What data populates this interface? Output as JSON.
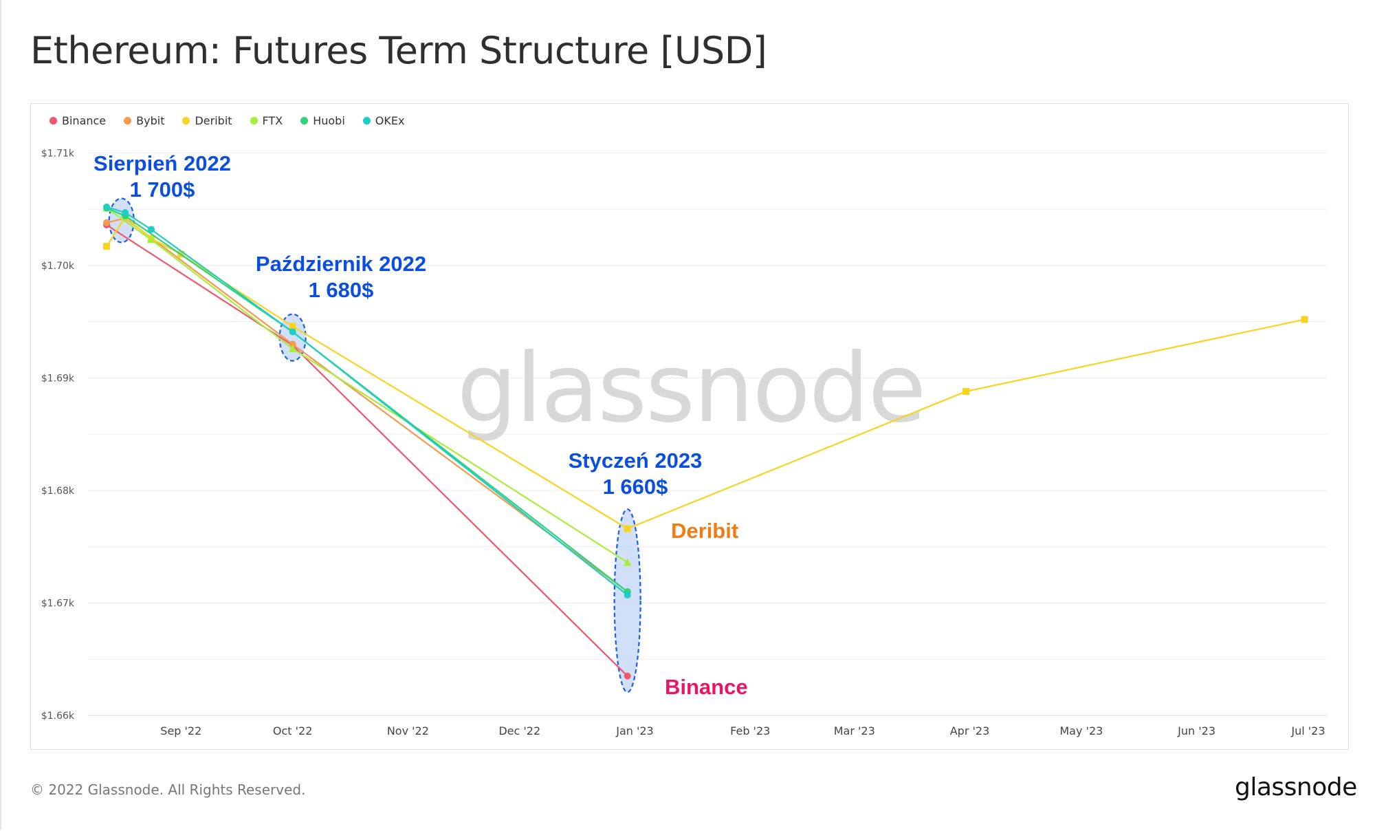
{
  "header": {
    "title": "Ethereum: Futures Term Structure [USD]"
  },
  "footer": {
    "copyright": "© 2022 Glassnode. All Rights Reserved.",
    "logo_text": "glassnode"
  },
  "watermark": "glassnode",
  "colors": {
    "Binance": "#f0566f",
    "Bybit": "#f39a4c",
    "Deribit": "#f7d421",
    "FTX": "#a8ec3c",
    "Huobi": "#2ed37a",
    "OKEx": "#1ecdc3",
    "annotation_blue": "#0b4fe0",
    "annotation_orange": "#f07c16",
    "annotation_pink": "#ee1560"
  },
  "chart_data": {
    "type": "line",
    "title": "Ethereum: Futures Term Structure [USD]",
    "y_ticks": [
      "$1.66k",
      "$1.67k",
      "$1.68k",
      "$1.69k",
      "$1.70k",
      "$1.71k"
    ],
    "x_ticks": [
      "Sep '22",
      "Oct '22",
      "Nov '22",
      "Dec '22",
      "Jan '23",
      "Feb '23",
      "Mar '23",
      "Apr '23",
      "May '23",
      "Jun '23",
      "Jul '23"
    ],
    "x_tick_dates": [
      "2022-09-01",
      "2022-10-01",
      "2022-11-01",
      "2022-12-01",
      "2023-01-01",
      "2023-02-01",
      "2023-03-01",
      "2023-04-01",
      "2023-05-01",
      "2023-06-01",
      "2023-07-01"
    ],
    "xlim": [
      "2022-08-07",
      "2023-07-06"
    ],
    "ylim": [
      1660,
      1711
    ],
    "grid": true,
    "legend_position": "top-left",
    "series": [
      {
        "name": "Binance",
        "marker": "circle",
        "points": [
          {
            "x": "2022-08-12",
            "y": 1703.6
          },
          {
            "x": "2022-10-01",
            "y": 1692.9
          },
          {
            "x": "2022-12-30",
            "y": 1663.5
          }
        ]
      },
      {
        "name": "Bybit",
        "marker": "circle",
        "points": [
          {
            "x": "2022-08-12",
            "y": 1703.8
          },
          {
            "x": "2022-08-17",
            "y": 1704.2
          },
          {
            "x": "2022-10-01",
            "y": 1693.0
          },
          {
            "x": "2022-12-30",
            "y": 1671.0
          }
        ]
      },
      {
        "name": "Deribit",
        "marker": "square",
        "points": [
          {
            "x": "2022-08-12",
            "y": 1701.7
          },
          {
            "x": "2022-08-17",
            "y": 1704.3
          },
          {
            "x": "2022-08-24",
            "y": 1702.4
          },
          {
            "x": "2022-09-01",
            "y": 1701.0
          },
          {
            "x": "2022-10-01",
            "y": 1694.6
          },
          {
            "x": "2022-12-30",
            "y": 1676.6
          },
          {
            "x": "2023-03-31",
            "y": 1688.8
          },
          {
            "x": "2023-06-30",
            "y": 1695.2
          }
        ]
      },
      {
        "name": "FTX",
        "marker": "triangle",
        "points": [
          {
            "x": "2022-08-12",
            "y": 1705.1
          },
          {
            "x": "2022-08-24",
            "y": 1702.3
          },
          {
            "x": "2022-10-01",
            "y": 1692.6
          },
          {
            "x": "2022-12-30",
            "y": 1673.6
          }
        ]
      },
      {
        "name": "Huobi",
        "marker": "circle",
        "points": [
          {
            "x": "2022-08-12",
            "y": 1705.1
          },
          {
            "x": "2022-08-17",
            "y": 1704.4
          },
          {
            "x": "2022-10-01",
            "y": 1694.1
          },
          {
            "x": "2022-12-30",
            "y": 1671.0
          }
        ]
      },
      {
        "name": "OKEx",
        "marker": "circle",
        "points": [
          {
            "x": "2022-08-12",
            "y": 1705.2
          },
          {
            "x": "2022-08-17",
            "y": 1704.7
          },
          {
            "x": "2022-08-24",
            "y": 1703.2
          },
          {
            "x": "2022-10-01",
            "y": 1694.1
          },
          {
            "x": "2022-12-30",
            "y": 1670.7
          }
        ]
      }
    ],
    "annotations": [
      {
        "name": "annotation-sierpien",
        "lines": [
          "Sierpień 2022",
          "1 700$"
        ],
        "color": "annotation_blue"
      },
      {
        "name": "annotation-pazdziernik",
        "lines": [
          "Październik 2022",
          "1 680$"
        ],
        "color": "annotation_blue"
      },
      {
        "name": "annotation-styczen",
        "lines": [
          "Styczeń 2023",
          "1 660$"
        ],
        "color": "annotation_blue"
      },
      {
        "name": "annotation-deribit",
        "lines": [
          "Deribit"
        ],
        "color": "annotation_orange"
      },
      {
        "name": "annotation-binance",
        "lines": [
          "Binance"
        ],
        "color": "annotation_pink"
      }
    ]
  }
}
